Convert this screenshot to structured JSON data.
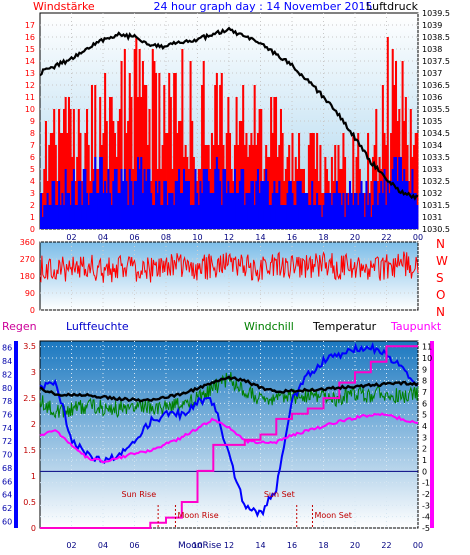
{
  "header": {
    "left_label": "Windstärke",
    "title": "24 hour graph day : 14 November 2015",
    "right_label": "Luftdruck"
  },
  "colors": {
    "wind": "#ff0000",
    "gust": "#0000ff",
    "pressure": "#000000",
    "direction": "#ff0000",
    "rain": "#ff00cc",
    "humidity": "#0000ff",
    "windchill": "#008000",
    "temperature": "#000000",
    "dewpoint": "#ff00ff",
    "zero_line": "#000080",
    "astro": "#c00000",
    "label_humidity": "#0000cc",
    "label_windchill": "#008000",
    "label_rain": "#cc0099"
  },
  "chart_data": [
    {
      "type": "bar",
      "name": "wind-pressure",
      "left_axis_title": "Windstärke",
      "right_axis_title": "Luftdruck",
      "left_ylim": [
        0,
        18
      ],
      "left_ticks": [
        "0",
        "1",
        "2",
        "3",
        "4",
        "5",
        "6",
        "7",
        "8",
        "9",
        "10",
        "11",
        "12",
        "13",
        "14",
        "15",
        "16",
        "17"
      ],
      "right_ylim": [
        1030.5,
        1039.5
      ],
      "right_ticks": [
        "1030.5",
        "1031",
        "1031.5",
        "1032",
        "1032.5",
        "1033",
        "1033.5",
        "1034",
        "1034.5",
        "1035",
        "1035.5",
        "1036",
        "1036.5",
        "1037",
        "1037.5",
        "1038",
        "1038.5",
        "1039",
        "1039.5"
      ],
      "x_ticks": [
        "02",
        "04",
        "06",
        "08",
        "10",
        "12",
        "14",
        "16",
        "18",
        "20",
        "22",
        "00"
      ],
      "series": [
        {
          "name": "Windstärke",
          "kind": "bars",
          "x": [
            0,
            1,
            2,
            3,
            4,
            5,
            6,
            7,
            8,
            9,
            10,
            11,
            12,
            13,
            14,
            15,
            16,
            17,
            18,
            19,
            20,
            21,
            22,
            23,
            24
          ],
          "values": [
            9,
            12,
            11,
            13,
            13,
            15,
            16,
            15,
            14,
            15,
            14,
            14,
            12,
            12,
            13,
            12,
            11,
            9,
            9,
            9,
            9,
            9,
            16,
            16,
            9
          ]
        },
        {
          "name": "Böen",
          "kind": "bars",
          "x": [
            0,
            1,
            2,
            3,
            4,
            5,
            6,
            7,
            8,
            9,
            10,
            11,
            12,
            13,
            14,
            15,
            16,
            17,
            18,
            19,
            20,
            21,
            22,
            23,
            24
          ],
          "values": [
            3,
            5,
            5,
            6,
            6,
            5,
            6,
            6,
            5,
            6,
            5,
            6,
            5,
            5,
            5,
            5,
            5,
            4,
            4,
            4,
            4,
            4,
            6,
            6,
            4
          ]
        },
        {
          "name": "Luftdruck",
          "kind": "line",
          "x": [
            0,
            1,
            2,
            3,
            4,
            5,
            6,
            7,
            8,
            9,
            10,
            11,
            12,
            13,
            14,
            15,
            16,
            17,
            18,
            19,
            20,
            21,
            22,
            23,
            24
          ],
          "values": [
            1037.0,
            1037.3,
            1037.6,
            1038.0,
            1038.4,
            1038.6,
            1038.5,
            1038.2,
            1038.1,
            1038.3,
            1038.4,
            1038.6,
            1038.8,
            1038.5,
            1038.2,
            1037.8,
            1037.3,
            1036.7,
            1036.0,
            1035.2,
            1034.3,
            1033.3,
            1032.6,
            1032.0,
            1031.8
          ]
        }
      ]
    },
    {
      "type": "line",
      "name": "wind-direction",
      "ylim": [
        0,
        360
      ],
      "y_ticks": [
        "0",
        "90",
        "180",
        "270",
        "360"
      ],
      "right_labels": [
        "N",
        "W",
        "S",
        "O",
        "N"
      ],
      "series": [
        {
          "name": "Windrichtung",
          "x": [
            0,
            1,
            2,
            3,
            4,
            5,
            6,
            7,
            8,
            9,
            10,
            11,
            12,
            13,
            14,
            15,
            16,
            17,
            18,
            19,
            20,
            21,
            22,
            23,
            24
          ],
          "values": [
            220,
            230,
            210,
            240,
            200,
            230,
            220,
            210,
            230,
            240,
            220,
            230,
            250,
            230,
            220,
            240,
            230,
            220,
            240,
            230,
            220,
            210,
            230,
            240,
            230
          ]
        }
      ]
    },
    {
      "type": "line",
      "name": "temperature-humidity",
      "series_labels": {
        "rain": "Regen",
        "humidity": "Luftfeuchte",
        "windchill": "Windchill",
        "temperature": "Temperatur",
        "dewpoint": "Taupunkt"
      },
      "rain_ylim": [
        0,
        3.6
      ],
      "rain_ticks": [
        "0",
        "0.5",
        "1",
        "1.5",
        "2",
        "2.5",
        "3",
        "3.5"
      ],
      "humidity_ylim": [
        59,
        87
      ],
      "humidity_ticks": [
        "60",
        "62",
        "64",
        "66",
        "68",
        "70",
        "72",
        "74",
        "76",
        "78",
        "80",
        "82",
        "84",
        "86"
      ],
      "temp_ylim": [
        -5,
        11.5
      ],
      "temp_ticks": [
        "-5",
        "-4",
        "-3",
        "-2",
        "-1",
        "0",
        "1",
        "2",
        "3",
        "4",
        "5",
        "6",
        "7",
        "8",
        "9",
        "10",
        "11"
      ],
      "x_ticks": [
        "02",
        "04",
        "06",
        "08",
        "10",
        "12",
        "14",
        "16",
        "18",
        "20",
        "22",
        "00"
      ],
      "series": [
        {
          "name": "Temperatur",
          "axis": "temp",
          "x": [
            0,
            1,
            2,
            3,
            4,
            5,
            6,
            7,
            8,
            9,
            10,
            11,
            12,
            13,
            14,
            15,
            16,
            17,
            18,
            19,
            20,
            21,
            22,
            23,
            24
          ],
          "values": [
            7.3,
            6.8,
            6.7,
            6.7,
            6.6,
            6.4,
            6.3,
            6.3,
            6.6,
            6.8,
            7.3,
            7.9,
            8.3,
            8.0,
            7.4,
            7.0,
            7.1,
            7.2,
            7.2,
            7.4,
            7.5,
            7.6,
            7.7,
            7.8,
            7.7
          ]
        },
        {
          "name": "Windchill",
          "axis": "temp",
          "x": [
            0,
            1,
            2,
            3,
            4,
            5,
            6,
            7,
            8,
            9,
            10,
            11,
            12,
            13,
            14,
            15,
            16,
            17,
            18,
            19,
            20,
            21,
            22,
            23,
            24
          ],
          "values": [
            6.2,
            5.3,
            5.5,
            5.8,
            5.6,
            5.5,
            5.9,
            5.7,
            5.6,
            5.9,
            6.4,
            7.4,
            8.2,
            7.1,
            6.4,
            6.5,
            6.6,
            6.7,
            6.6,
            6.4,
            6.9,
            6.7,
            6.9,
            6.6,
            6.8
          ]
        },
        {
          "name": "Taupunkt",
          "axis": "temp",
          "x": [
            0,
            1,
            2,
            3,
            4,
            5,
            6,
            7,
            8,
            9,
            10,
            11,
            12,
            13,
            14,
            15,
            16,
            17,
            18,
            19,
            20,
            21,
            22,
            23,
            24
          ],
          "values": [
            3.2,
            3.6,
            2.3,
            1.2,
            0.9,
            1.2,
            1.6,
            1.8,
            2.4,
            3.0,
            3.8,
            4.6,
            3.9,
            2.7,
            2.5,
            2.6,
            3.2,
            3.6,
            4.0,
            4.4,
            4.7,
            5.0,
            5.0,
            4.6,
            4.3
          ]
        },
        {
          "name": "Luftfeuchte",
          "axis": "humidity",
          "x": [
            0,
            1,
            2,
            3,
            4,
            5,
            6,
            7,
            8,
            9,
            10,
            11,
            12,
            13,
            14,
            15,
            16,
            17,
            18,
            19,
            20,
            21,
            22,
            23,
            24
          ],
          "values": [
            80,
            81,
            72,
            70,
            69,
            70,
            72,
            75,
            76,
            76,
            78,
            78,
            70,
            62,
            61,
            65,
            78,
            82,
            84,
            85,
            86,
            86,
            85,
            83,
            80
          ]
        },
        {
          "name": "Regen",
          "axis": "rain",
          "x": [
            0,
            1,
            2,
            3,
            4,
            5,
            6,
            7,
            8,
            9,
            10,
            11,
            12,
            13,
            14,
            15,
            16,
            17,
            18,
            19,
            20,
            21,
            22,
            23,
            24
          ],
          "values": [
            0,
            0,
            0,
            0,
            0,
            0,
            0,
            0.1,
            0.2,
            0.5,
            1.1,
            1.6,
            1.6,
            1.7,
            1.8,
            2.1,
            2.2,
            2.3,
            2.5,
            2.8,
            3.0,
            3.2,
            3.5,
            3.5,
            3.5
          ]
        }
      ],
      "astro": [
        {
          "label": "Sun Rise",
          "time": 7.5
        },
        {
          "label": "Moon Rise",
          "time": 8.6
        },
        {
          "label": "Sun Set",
          "time": 16.3
        },
        {
          "label": "Moon Set",
          "time": 17.3
        }
      ],
      "moon_label": "MoonRise"
    }
  ]
}
